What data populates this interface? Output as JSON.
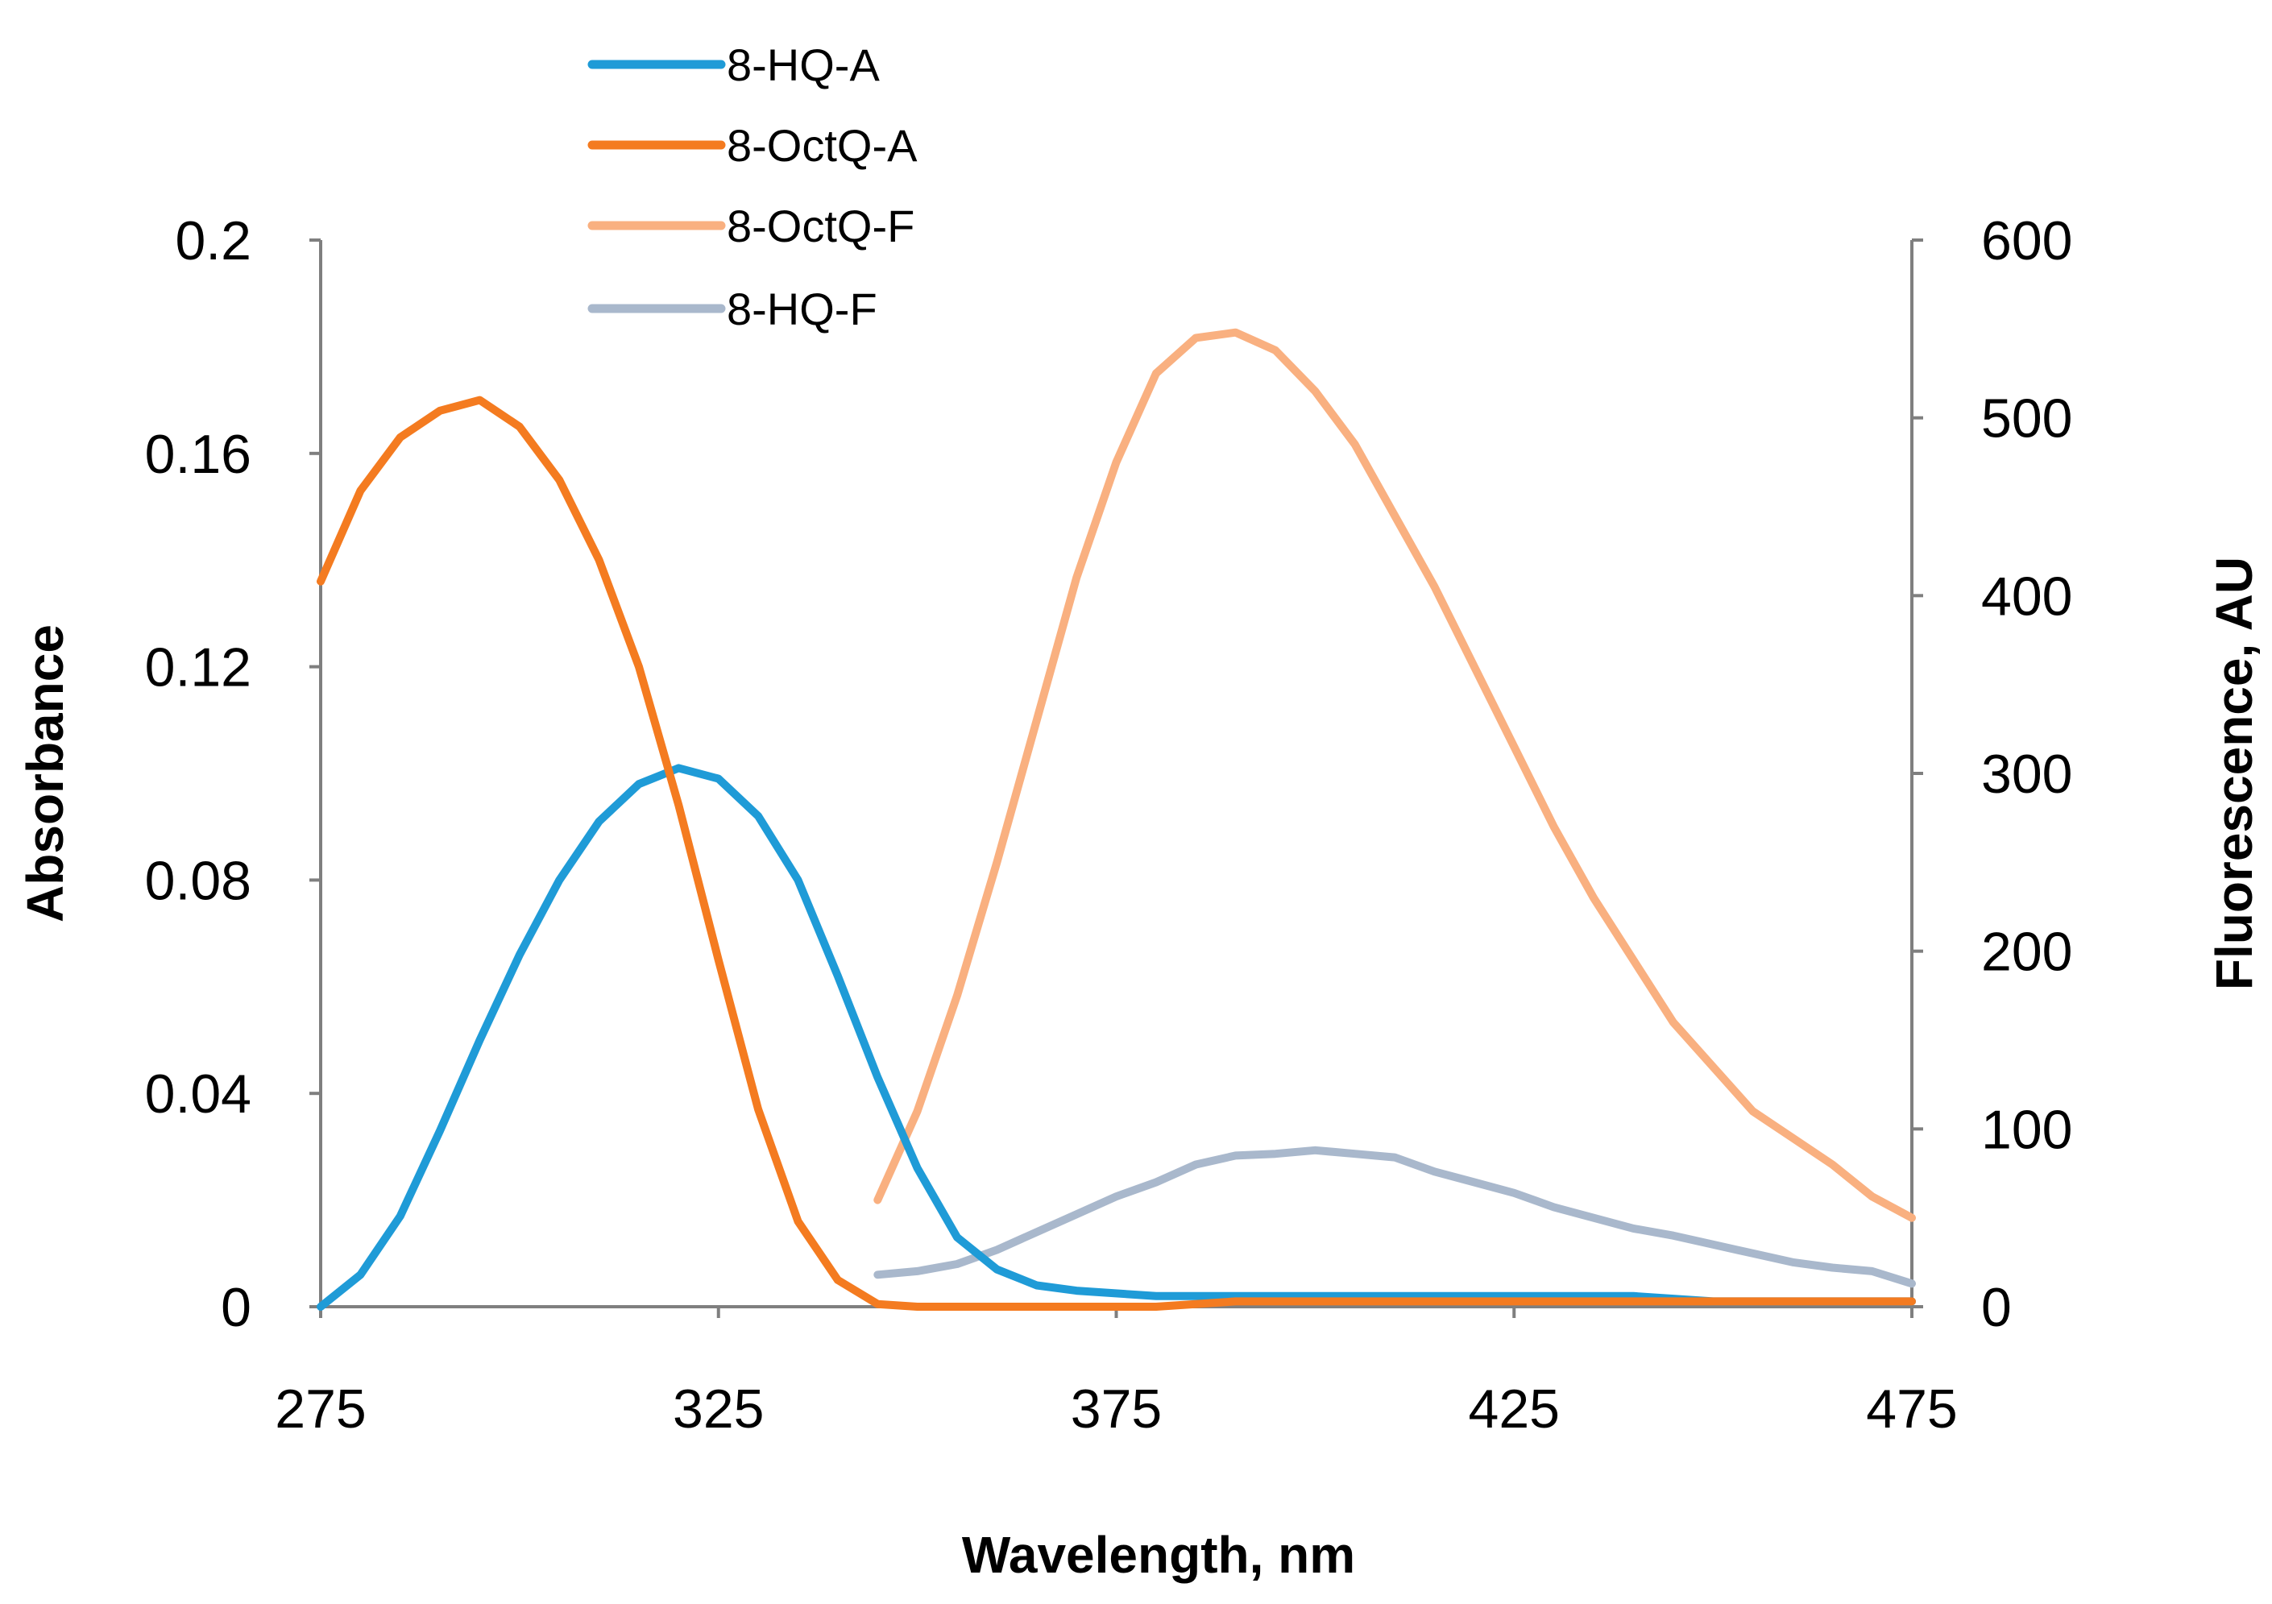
{
  "chart_data": {
    "type": "line",
    "xlabel": "Wavelength, nm",
    "ylabel_left": "Absorbance",
    "ylabel_right": "Fluorescence, AU",
    "xlim": [
      275,
      475
    ],
    "ylim_left": [
      0,
      0.2
    ],
    "ylim_right": [
      0,
      600
    ],
    "x_ticks": [
      "275",
      "325",
      "375",
      "425",
      "475"
    ],
    "y_left_ticks": [
      "0",
      "0.04",
      "0.08",
      "0.12",
      "0.16",
      "0.2"
    ],
    "y_right_ticks": [
      "0",
      "100",
      "200",
      "300",
      "400",
      "500",
      "600"
    ],
    "grid": false,
    "legend_position": "top-left",
    "series": [
      {
        "name": "8-HQ-A",
        "axis": "left",
        "color": "#1f9bd7",
        "x": [
          275,
          280,
          285,
          290,
          295,
          300,
          305,
          310,
          315,
          320,
          325,
          330,
          335,
          340,
          345,
          350,
          355,
          360,
          365,
          370,
          380,
          390,
          400,
          410,
          420,
          430,
          440,
          450,
          460,
          475
        ],
        "y": [
          0,
          0.006,
          0.017,
          0.033,
          0.05,
          0.066,
          0.08,
          0.091,
          0.098,
          0.101,
          0.099,
          0.092,
          0.08,
          0.062,
          0.043,
          0.026,
          0.013,
          0.007,
          0.004,
          0.003,
          0.002,
          0.002,
          0.002,
          0.002,
          0.002,
          0.002,
          0.002,
          0.001,
          0.001,
          0.001
        ]
      },
      {
        "name": "8-OctQ-A",
        "axis": "left",
        "color": "#f47b20",
        "x": [
          275,
          280,
          285,
          290,
          295,
          300,
          305,
          310,
          315,
          320,
          325,
          330,
          335,
          340,
          345,
          350,
          355,
          360,
          370,
          380,
          390,
          400,
          420,
          440,
          460,
          475
        ],
        "y": [
          0.136,
          0.153,
          0.163,
          0.168,
          0.17,
          0.165,
          0.155,
          0.14,
          0.12,
          0.094,
          0.065,
          0.037,
          0.016,
          0.005,
          0.0005,
          0,
          0,
          0,
          0,
          0,
          0.001,
          0.001,
          0.001,
          0.001,
          0.001,
          0.001
        ]
      },
      {
        "name": "8-OctQ-F",
        "axis": "right",
        "color": "#f9b080",
        "x": [
          345,
          350,
          355,
          360,
          365,
          370,
          375,
          380,
          385,
          390,
          395,
          400,
          405,
          410,
          415,
          420,
          425,
          430,
          435,
          440,
          445,
          450,
          455,
          460,
          465,
          470,
          475
        ],
        "y": [
          60,
          110,
          175,
          250,
          330,
          410,
          475,
          525,
          545,
          548,
          538,
          515,
          485,
          445,
          405,
          360,
          315,
          270,
          230,
          195,
          160,
          135,
          110,
          95,
          80,
          62,
          50
        ]
      },
      {
        "name": "8-HQ-F",
        "axis": "right",
        "color": "#a9b8cc",
        "x": [
          345,
          350,
          355,
          360,
          365,
          370,
          375,
          380,
          385,
          390,
          395,
          400,
          405,
          410,
          415,
          420,
          425,
          430,
          435,
          440,
          445,
          450,
          455,
          460,
          465,
          470,
          475
        ],
        "y": [
          18,
          20,
          24,
          32,
          42,
          52,
          62,
          70,
          80,
          85,
          86,
          88,
          86,
          84,
          76,
          70,
          64,
          56,
          50,
          44,
          40,
          35,
          30,
          25,
          22,
          20,
          13
        ]
      }
    ]
  }
}
